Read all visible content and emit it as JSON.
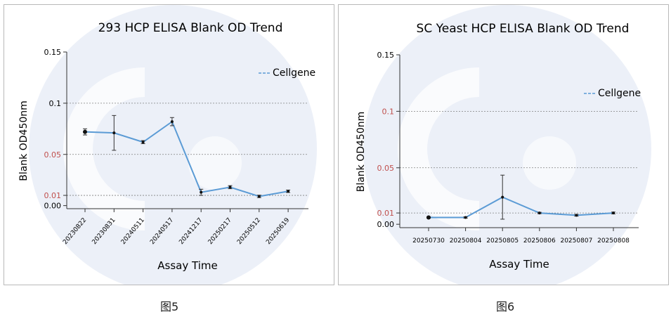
{
  "figure_captions": [
    "图5",
    "图6"
  ],
  "colors": {
    "series": "#5b9bd5",
    "grid": "#7f7f7f",
    "tick_red": "#c0504d",
    "text": "#000000",
    "watermark": "#dce4f2"
  },
  "chart_data": [
    {
      "type": "line",
      "title": "293 HCP ELISA Blank OD Trend",
      "xlabel": "Assay Time",
      "ylabel": "Blank OD450nm",
      "ylim": [
        -0.003,
        0.15
      ],
      "yticks": [
        {
          "label": "0.15",
          "value": 0.15,
          "grid": false,
          "red": false
        },
        {
          "label": "0.1",
          "value": 0.1,
          "grid": true,
          "red": false
        },
        {
          "label": "0.05",
          "value": 0.05,
          "grid": true,
          "red": true
        },
        {
          "label": "0.01",
          "value": 0.01,
          "grid": true,
          "red": true
        },
        {
          "label": "0.00",
          "value": 0.0,
          "grid": false,
          "red": false
        }
      ],
      "categories": [
        "20230822",
        "20230831",
        "20240511",
        "20240517",
        "20241217",
        "20250217",
        "20250512",
        "20250619"
      ],
      "series": [
        {
          "name": "Cellgene",
          "values": [
            0.072,
            0.071,
            0.062,
            0.082,
            0.013,
            0.018,
            0.009,
            0.014
          ],
          "errors": [
            0.003,
            0.017,
            0.0015,
            0.004,
            0.003,
            0.0015,
            0.0012,
            0.0012
          ]
        }
      ],
      "legend": "top-right",
      "x_tick_rotation": -50
    },
    {
      "type": "line",
      "title": "SC Yeast HCP ELISA Blank OD Trend",
      "xlabel": "Assay Time",
      "ylabel": "Blank OD450nm",
      "ylim": [
        -0.003,
        0.15
      ],
      "yticks": [
        {
          "label": "0.15",
          "value": 0.15,
          "grid": false,
          "red": false
        },
        {
          "label": "0.1",
          "value": 0.1,
          "grid": true,
          "red": true
        },
        {
          "label": "0.05",
          "value": 0.05,
          "grid": true,
          "red": true
        },
        {
          "label": "0.01",
          "value": 0.01,
          "grid": true,
          "red": true
        },
        {
          "label": "0.00",
          "value": 0.0,
          "grid": false,
          "red": false
        }
      ],
      "categories": [
        "20250730",
        "20250804",
        "20250805",
        "20250806",
        "20250807",
        "20250808"
      ],
      "series": [
        {
          "name": "Cellgene",
          "values": [
            0.006,
            0.006,
            0.024,
            0.01,
            0.008,
            0.01
          ],
          "errors": [
            0.0006,
            0.0006,
            0.0195,
            0.0006,
            0.0008,
            0.0008
          ]
        }
      ],
      "legend": "top-right",
      "x_tick_rotation": 0
    }
  ]
}
